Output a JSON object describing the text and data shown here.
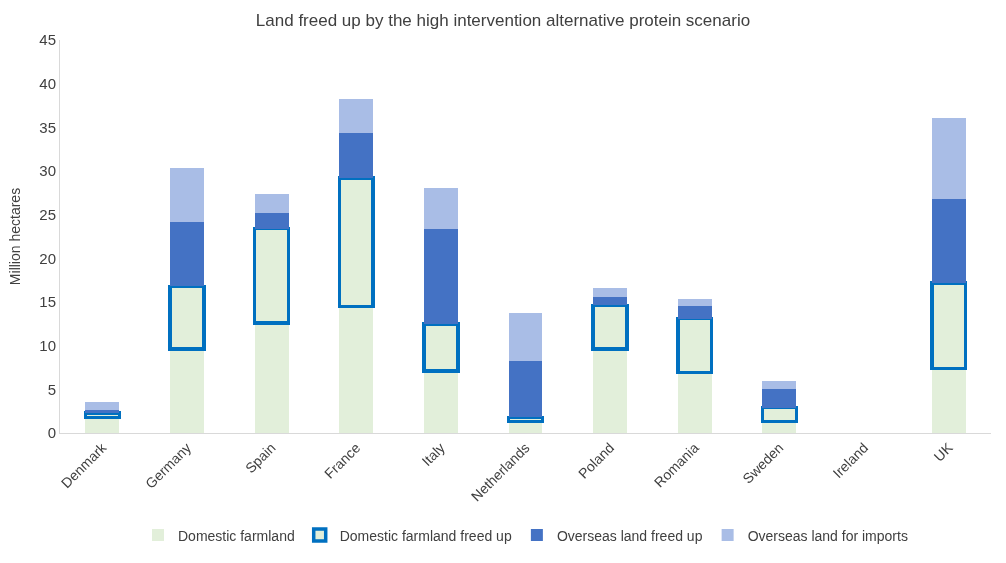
{
  "chart_data": {
    "type": "bar",
    "stacked": true,
    "title": "Land freed up by the high intervention alternative protein scenario",
    "ylabel": "Million hectares",
    "categories": [
      "Denmark",
      "Germany",
      "Spain",
      "France",
      "Italy",
      "Netherlands",
      "Poland",
      "Romania",
      "Sweden",
      "Ireland",
      "UK"
    ],
    "series": [
      {
        "name": "Domestic farmland",
        "color": "#e2efda",
        "values": [
          1.8,
          9.6,
          12.6,
          14.5,
          7.1,
          1.3,
          9.6,
          6.9,
          1.3,
          null,
          7.4
        ]
      },
      {
        "name": "Domestic farmland freed up",
        "color": "#0070c0",
        "values": [
          0.5,
          7.2,
          10.8,
          14.7,
          5.4,
          0.5,
          5.0,
          6.2,
          1.6,
          null,
          9.8
        ]
      },
      {
        "name": "Overseas land freed up",
        "color": "#4472c4",
        "values": [
          0.3,
          7.4,
          1.8,
          5.2,
          10.9,
          6.4,
          1.0,
          1.4,
          2.1,
          null,
          9.6
        ]
      },
      {
        "name": "Overseas land for imports",
        "color": "#a9bde6",
        "values": [
          0.9,
          6.1,
          2.2,
          3.8,
          4.6,
          5.5,
          1.0,
          0.8,
          1.0,
          null,
          9.3
        ]
      }
    ],
    "ylim": [
      0,
      45
    ],
    "yticks": [
      0,
      5,
      10,
      15,
      20,
      25,
      30,
      35,
      40,
      45
    ],
    "grid": false,
    "legend": "bottom"
  }
}
